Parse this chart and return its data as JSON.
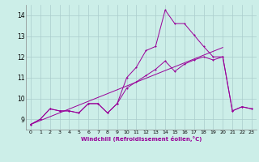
{
  "xlabel": "Windchill (Refroidissement éolien,°C)",
  "bg_color": "#cceee8",
  "grid_color": "#aacccc",
  "line_color": "#990099",
  "x_min": -0.5,
  "x_max": 23.5,
  "y_min": 8.5,
  "y_max": 14.5,
  "y_ticks": [
    9,
    10,
    11,
    12,
    13,
    14
  ],
  "x_ticks": [
    0,
    1,
    2,
    3,
    4,
    5,
    6,
    7,
    8,
    9,
    10,
    11,
    12,
    13,
    14,
    15,
    16,
    17,
    18,
    19,
    20,
    21,
    22,
    23
  ],
  "line1_x": [
    0,
    1,
    2,
    3,
    4,
    5,
    6,
    7,
    8,
    9,
    10,
    11,
    12,
    13,
    14,
    15,
    16,
    17,
    18,
    19,
    20,
    21,
    22,
    23
  ],
  "line1_y": [
    8.75,
    9.0,
    9.5,
    9.4,
    9.4,
    9.3,
    9.75,
    9.75,
    9.3,
    9.75,
    11.0,
    11.5,
    12.3,
    12.5,
    14.25,
    13.6,
    13.6,
    13.05,
    12.5,
    12.0,
    12.0,
    9.4,
    9.6,
    9.5
  ],
  "line2_x": [
    0,
    1,
    2,
    3,
    4,
    5,
    6,
    7,
    8,
    9,
    10,
    11,
    12,
    13,
    14,
    15,
    16,
    17,
    18,
    19,
    20,
    21,
    22,
    23
  ],
  "line2_y": [
    8.75,
    9.0,
    9.5,
    9.4,
    9.4,
    9.3,
    9.75,
    9.75,
    9.3,
    9.75,
    10.5,
    10.8,
    11.1,
    11.4,
    11.8,
    11.3,
    11.65,
    11.85,
    12.0,
    11.85,
    12.0,
    9.4,
    9.6,
    9.5
  ],
  "line3_x": [
    0,
    20
  ],
  "line3_y": [
    8.75,
    12.45
  ]
}
